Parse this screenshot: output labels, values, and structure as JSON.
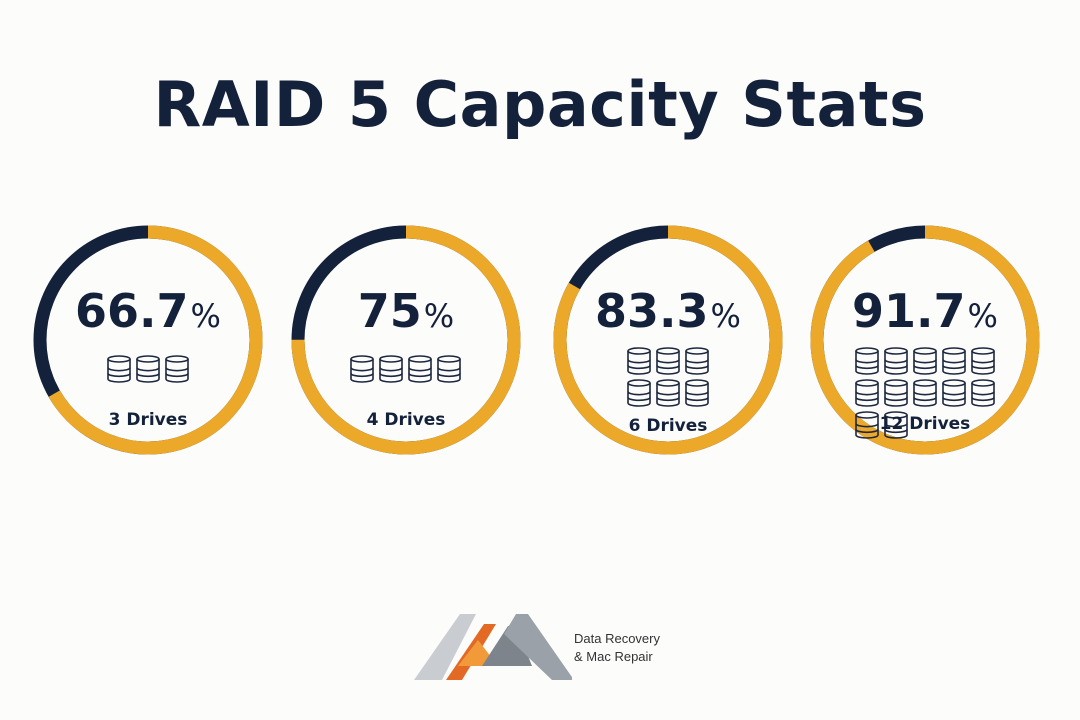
{
  "title": "RAID 5 Capacity Stats",
  "colors": {
    "navy": "#14213b",
    "gold": "#eca829",
    "background": "#fcfcfb"
  },
  "stats": [
    {
      "value": "66.7",
      "unit": "%",
      "fraction": 0.667,
      "drives": 3,
      "label": "3 Drives"
    },
    {
      "value": "75",
      "unit": "%",
      "fraction": 0.75,
      "drives": 4,
      "label": "4 Drives"
    },
    {
      "value": "83.3",
      "unit": "%",
      "fraction": 0.833,
      "drives": 6,
      "label": "6 Drives"
    },
    {
      "value": "91.7",
      "unit": "%",
      "fraction": 0.917,
      "drives": 12,
      "label": "12 Drives"
    }
  ],
  "footer": {
    "line1": "Data Recovery",
    "line2": "& Mac Repair",
    "logo_icon": "mountain-logo-icon"
  }
}
